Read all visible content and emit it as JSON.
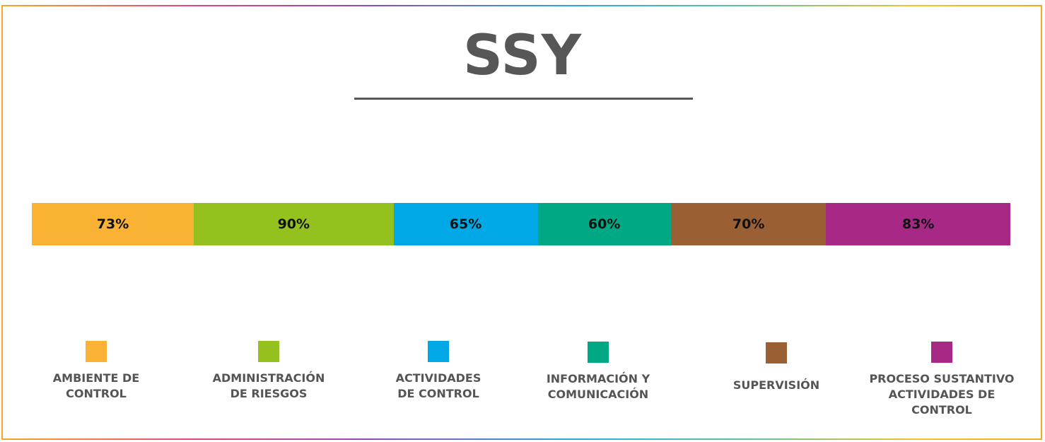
{
  "title": "SSY",
  "chart_data": {
    "type": "bar",
    "orientation": "horizontal-segmented",
    "categories": [
      "AMBIENTE DE CONTROL",
      "ADMINISTRACIÓN DE RIESGOS",
      "ACTIVIDADES DE CONTROL",
      "INFORMACIÓN Y COMUNICACIÓN",
      "SUPERVISIÓN",
      "PROCESO SUSTANTIVO ACTIVIDADES DE CONTROL"
    ],
    "values": [
      73,
      90,
      65,
      60,
      70,
      83
    ],
    "value_labels": [
      "73%",
      "90%",
      "65%",
      "60%",
      "70%",
      "83%"
    ],
    "colors": [
      "#f9b233",
      "#95c11f",
      "#00a8e6",
      "#00a884",
      "#9a6034",
      "#a72885"
    ],
    "legend_labels": [
      "AMBIENTE DE\nCONTROL",
      "ADMINISTRACIÓN\nDE RIESGOS",
      "ACTIVIDADES\nDE CONTROL",
      "INFORMACIÓN Y\nCOMUNICACIÓN",
      "SUPERVISIÓN",
      "PROCESO SUSTANTIVO\nACTIVIDADES DE\nCONTROL"
    ],
    "legend_placement": "bottom",
    "grid": false
  }
}
